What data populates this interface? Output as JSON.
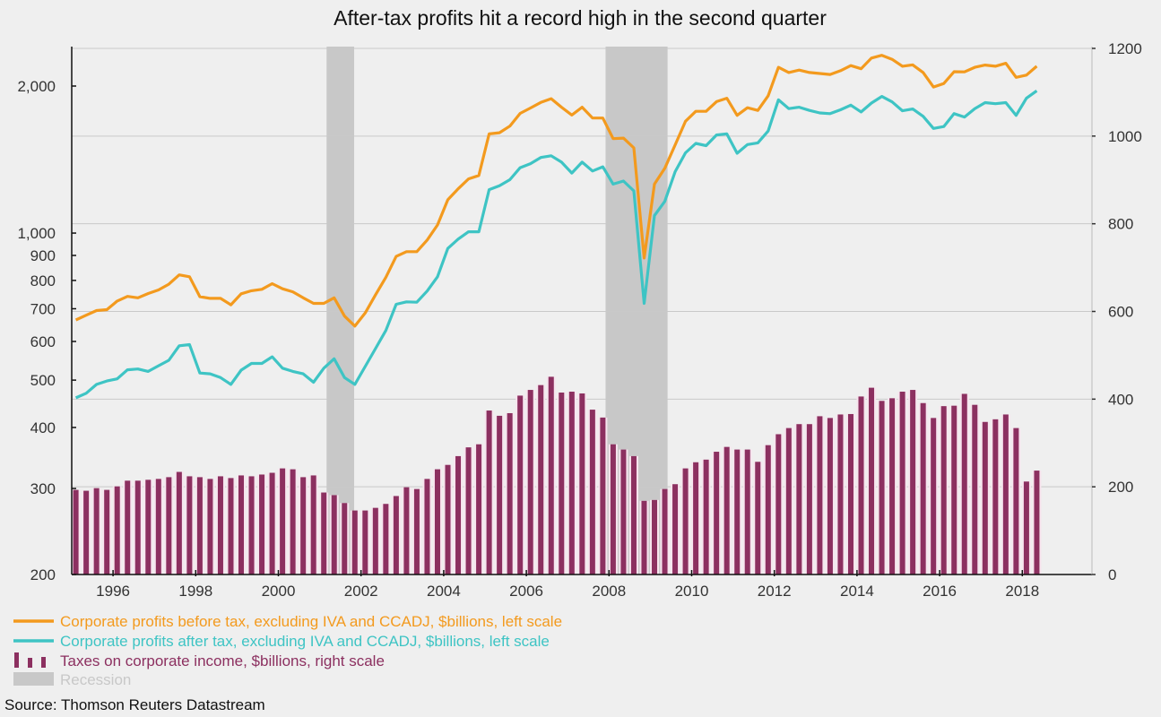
{
  "chart_data": {
    "type": "bar+line",
    "title": "After-tax profits hit a record high in the second quarter",
    "source": "Source: Thomson Reuters Datastream",
    "x": {
      "start_quarter": "1995Q1",
      "end_quarter": "2018Q2",
      "range": [
        1995,
        2019.7
      ],
      "ticks": [
        "1996",
        "1998",
        "2000",
        "2002",
        "2004",
        "2006",
        "2008",
        "2010",
        "2012",
        "2014",
        "2016",
        "2018"
      ]
    },
    "left_axis": {
      "scale": "log",
      "range": [
        200,
        2400
      ],
      "ticks": [
        200,
        300,
        400,
        500,
        600,
        700,
        800,
        900,
        1000,
        2000
      ],
      "tick_labels": [
        "200",
        "300",
        "400",
        "500",
        "600",
        "700",
        "800",
        "900",
        "1,000",
        "2,000"
      ]
    },
    "right_axis": {
      "scale": "linear",
      "range": [
        0,
        1200
      ],
      "ticks": [
        0,
        200,
        400,
        600,
        800,
        1000,
        1200
      ],
      "tick_labels": [
        "0",
        "200",
        "400",
        "600",
        "800",
        "1000",
        "1200"
      ]
    },
    "grid": "horizontal, at right-axis ticks",
    "legend_position": "bottom-left",
    "recessions": [
      {
        "start": "2001-03",
        "end": "2001-11"
      },
      {
        "start": "2007-12",
        "end": "2009-06"
      }
    ],
    "series": [
      {
        "name": "Corporate profits before tax, excluding IVA and CCADJ, $billions, left scale",
        "type": "line",
        "axis": "left",
        "color": "#f39a1e",
        "values": [
          664,
          679,
          694,
          697,
          726,
          742,
          737,
          752,
          765,
          786,
          821,
          814,
          741,
          735,
          735,
          713,
          751,
          762,
          767,
          788,
          769,
          758,
          737,
          718,
          718,
          737,
          676,
          645,
          686,
          747,
          812,
          896,
          916,
          916,
          968,
          1039,
          1170,
          1232,
          1291,
          1312,
          1596,
          1605,
          1656,
          1758,
          1803,
          1851,
          1884,
          1810,
          1744,
          1810,
          1720,
          1720,
          1561,
          1565,
          1494,
          889,
          1260,
          1357,
          1516,
          1694,
          1775,
          1775,
          1858,
          1888,
          1742,
          1806,
          1783,
          1910,
          2185,
          2132,
          2156,
          2132,
          2122,
          2112,
          2150,
          2202,
          2170,
          2282,
          2312,
          2268,
          2196,
          2210,
          2132,
          1991,
          2024,
          2140,
          2138,
          2185,
          2208,
          2196,
          2227,
          2084,
          2106,
          2196
        ]
      },
      {
        "name": "Corporate profits after tax, excluding IVA and CCADJ, $billions, left scale",
        "type": "line",
        "axis": "left",
        "color": "#3ec4c4",
        "values": [
          460,
          470,
          490,
          498,
          503,
          525,
          527,
          521,
          535,
          549,
          588,
          591,
          517,
          515,
          506,
          490,
          524,
          541,
          541,
          558,
          529,
          521,
          515,
          495,
          529,
          553,
          506,
          490,
          533,
          580,
          632,
          715,
          723,
          722,
          761,
          814,
          930,
          972,
          1006,
          1006,
          1227,
          1250,
          1286,
          1361,
          1387,
          1428,
          1440,
          1397,
          1327,
          1397,
          1340,
          1367,
          1260,
          1278,
          1220,
          718,
          1086,
          1161,
          1336,
          1460,
          1526,
          1510,
          1588,
          1596,
          1457,
          1518,
          1530,
          1618,
          1874,
          1798,
          1810,
          1783,
          1762,
          1756,
          1788,
          1828,
          1770,
          1846,
          1904,
          1856,
          1780,
          1795,
          1734,
          1638,
          1652,
          1756,
          1728,
          1798,
          1850,
          1840,
          1850,
          1742,
          1888,
          1956
        ]
      },
      {
        "name": "Taxes on corporate income, $billions, right scale",
        "type": "bar",
        "axis": "right",
        "color": "#8c3060",
        "values": [
          193,
          191,
          197,
          193,
          201,
          214,
          214,
          216,
          218,
          222,
          234,
          224,
          222,
          218,
          224,
          220,
          226,
          224,
          228,
          232,
          242,
          240,
          222,
          226,
          187,
          181,
          163,
          146,
          146,
          152,
          161,
          179,
          199,
          195,
          218,
          240,
          250,
          270,
          290,
          297,
          374,
          362,
          368,
          408,
          421,
          432,
          451,
          415,
          417,
          413,
          376,
          358,
          297,
          285,
          270,
          168,
          170,
          195,
          206,
          242,
          256,
          262,
          280,
          291,
          285,
          285,
          257,
          295,
          320,
          334,
          343,
          343,
          361,
          357,
          365,
          366,
          406,
          426,
          396,
          402,
          417,
          421,
          391,
          357,
          384,
          385,
          412,
          387,
          348,
          354,
          365,
          334,
          212,
          237
        ]
      }
    ],
    "legend": [
      {
        "label": "Corporate profits before tax, excluding IVA and CCADJ, $billions, left scale",
        "color": "#f39a1e"
      },
      {
        "label": "Corporate profits after tax, excluding IVA and CCADJ, $billions, left scale",
        "color": "#3ec4c4"
      },
      {
        "label": "Taxes on corporate income, $billions, right scale",
        "color": "#8c3060"
      },
      {
        "label": "Recession",
        "color": "#c8c8c8"
      }
    ]
  }
}
